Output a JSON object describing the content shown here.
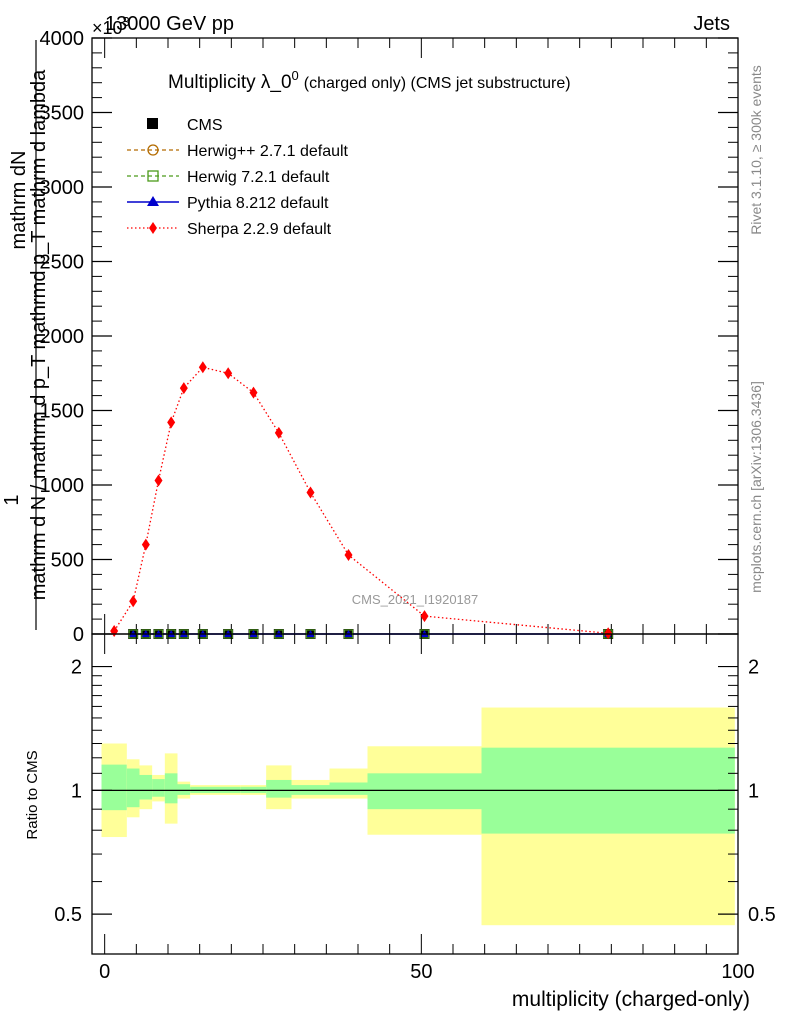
{
  "header": {
    "energy_label": "13000 GeV pp",
    "exponent_label": "×10",
    "exponent_power": "3",
    "category": "Jets"
  },
  "side_labels": {
    "rivet": "Rivet 3.1.10, ≥ 300k events",
    "mcplots": "mcplots.cern.ch [arXiv:1306.3436]"
  },
  "watermark": "CMS_2021_I1920187",
  "main_ylabel": {
    "line1": "1",
    "line2": "mathrm dN",
    "line3": "mathrm d N / mathrm d p_T mathrmd p_T mathrm d lambda"
  },
  "chart_data": [
    {
      "type": "line",
      "title": "Multiplicity λ_0⁰ (charged only) (CMS jet substructure)",
      "title_main": "Multiplicity λ_0",
      "title_sup": "0",
      "title_small": "(charged only) (CMS jet substructure)",
      "xlabel": "multiplicity (charged-only)",
      "ylabel": "1/(mathrm d N / mathrm d p_T) mathrm d N / mathrm d lambda (×10³)",
      "xlim": [
        -2,
        100
      ],
      "ylim": [
        0,
        4000
      ],
      "yticks": [
        0,
        500,
        1000,
        1500,
        2000,
        2500,
        3000,
        3500,
        4000
      ],
      "ytick_labels": [
        "0",
        "500",
        "1000",
        "1500",
        "2000",
        "2500",
        "3000",
        "3500",
        "4000"
      ],
      "legend_position": "top-left",
      "legend": [
        {
          "name": "CMS",
          "style": "data",
          "color": "#000000"
        },
        {
          "name": "Herwig++ 2.7.1 default",
          "style": "dashed",
          "marker": "circle-open",
          "color": "#b36b00"
        },
        {
          "name": "Herwig 7.2.1 default",
          "style": "dashed",
          "marker": "square-open",
          "color": "#4c9a1a"
        },
        {
          "name": "Pythia 8.212 default",
          "style": "solid",
          "marker": "triangle",
          "color": "#0000cc"
        },
        {
          "name": "Sherpa 2.2.9 default",
          "style": "dotted",
          "marker": "diamond",
          "color": "#ff0000"
        }
      ],
      "series": [
        {
          "name": "CMS",
          "x": [
            4.5,
            6.5,
            8.5,
            10.5,
            12.5,
            15.5,
            19.5,
            23.5,
            27.5,
            32.5,
            38.5,
            50.5,
            79.5
          ],
          "y": [
            0,
            0,
            0,
            0,
            0,
            0,
            0,
            0,
            0,
            0,
            0,
            0,
            0
          ]
        },
        {
          "name": "Sherpa 2.2.9 default",
          "x": [
            1.5,
            4.5,
            6.5,
            8.5,
            10.5,
            12.5,
            15.5,
            19.5,
            23.5,
            27.5,
            32.5,
            38.5,
            50.5,
            79.5
          ],
          "y": [
            20,
            220,
            600,
            1030,
            1420,
            1650,
            1790,
            1750,
            1620,
            1350,
            950,
            530,
            120,
            5
          ]
        }
      ]
    },
    {
      "type": "area",
      "title": "Ratio to CMS",
      "xlabel": "multiplicity (charged-only)",
      "ylabel": "Ratio to CMS",
      "xlim": [
        -2,
        100
      ],
      "ylim": [
        0.4,
        2.4
      ],
      "log_y": true,
      "yticks": [
        0.5,
        1,
        2
      ],
      "ytick_labels": [
        "0.5",
        "1",
        "2"
      ],
      "xticks": [
        0,
        50,
        100
      ],
      "xtick_labels": [
        "0",
        "50",
        "100"
      ],
      "reference_line": 1,
      "bin_edges": [
        -0.5,
        3.5,
        5.5,
        7.5,
        9.5,
        11.5,
        13.5,
        17.5,
        21.5,
        25.5,
        29.5,
        35.5,
        41.5,
        59.5,
        99.5
      ],
      "stat_band": [
        {
          "lo": 0.895,
          "hi": 1.155
        },
        {
          "lo": 0.91,
          "hi": 1.13
        },
        {
          "lo": 0.95,
          "hi": 1.09
        },
        {
          "lo": 0.965,
          "hi": 1.065
        },
        {
          "lo": 0.93,
          "hi": 1.1
        },
        {
          "lo": 0.975,
          "hi": 1.035
        },
        {
          "lo": 0.985,
          "hi": 1.02
        },
        {
          "lo": 0.985,
          "hi": 1.02
        },
        {
          "lo": 0.985,
          "hi": 1.02
        },
        {
          "lo": 0.96,
          "hi": 1.06
        },
        {
          "lo": 0.975,
          "hi": 1.03
        },
        {
          "lo": 0.975,
          "hi": 1.045
        },
        {
          "lo": 0.9,
          "hi": 1.1
        },
        {
          "lo": 0.785,
          "hi": 1.27
        },
        {
          "lo": 0.785,
          "hi": 1.27
        }
      ],
      "total_band": [
        {
          "lo": 0.77,
          "hi": 1.3
        },
        {
          "lo": 0.86,
          "hi": 1.19
        },
        {
          "lo": 0.9,
          "hi": 1.15
        },
        {
          "lo": 0.94,
          "hi": 1.09
        },
        {
          "lo": 0.83,
          "hi": 1.23
        },
        {
          "lo": 0.955,
          "hi": 1.05
        },
        {
          "lo": 0.975,
          "hi": 1.03
        },
        {
          "lo": 0.975,
          "hi": 1.03
        },
        {
          "lo": 0.975,
          "hi": 1.03
        },
        {
          "lo": 0.9,
          "hi": 1.15
        },
        {
          "lo": 0.955,
          "hi": 1.06
        },
        {
          "lo": 0.955,
          "hi": 1.13
        },
        {
          "lo": 0.78,
          "hi": 1.28
        },
        {
          "lo": 0.47,
          "hi": 1.59
        },
        {
          "lo": 0.47,
          "hi": 1.59
        }
      ],
      "colors": {
        "stat": "#99ff99",
        "total": "#ffff99",
        "line": "#000000"
      }
    }
  ]
}
